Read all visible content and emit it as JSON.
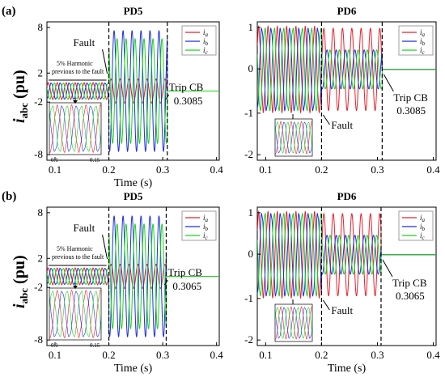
{
  "rows": [
    {
      "label": "(a)",
      "trip_time": "0.3085"
    },
    {
      "label": "(b)",
      "trip_time": "0.3065"
    }
  ],
  "ylabel": {
    "main": "i",
    "sub": "abc",
    "unit": "(pu)"
  },
  "annotations": {
    "fault": "Fault",
    "trip": "Trip CB",
    "harmonic_line1": "5% Harmonic",
    "harmonic_line2": "previous to the fault"
  },
  "inset_ticks": [
    "0.1",
    "0.15"
  ],
  "colors": {
    "ia": "#e8202a",
    "ib": "#1c2fe0",
    "ic": "#18d418"
  },
  "chart_data": [
    {
      "type": "line",
      "row": "(a)",
      "title": "PD5",
      "xlabel": "Time (s)",
      "xlim": [
        0.085,
        0.405
      ],
      "ylim": [
        -8.6,
        8.6
      ],
      "xticks": [
        "0.1",
        "0.2",
        "0.3",
        "0.4"
      ],
      "yticks": [
        "8",
        "2",
        "-2",
        "-8"
      ],
      "frequency_hz": 60,
      "fault_time": 0.2,
      "trip_time": 0.3085,
      "series": [
        {
          "name": "i_a",
          "color": "#e8202a",
          "phase_deg": 0,
          "pre_fault_amplitude": 1,
          "fault_amplitude": 1.5
        },
        {
          "name": "i_b",
          "color": "#1c2fe0",
          "phase_deg": -120,
          "pre_fault_amplitude": 1,
          "fault_amplitude": 7.5
        },
        {
          "name": "i_c",
          "color": "#18d418",
          "phase_deg": 120,
          "pre_fault_amplitude": 1,
          "fault_amplitude": 6.5
        }
      ],
      "post_trip_value": 0
    },
    {
      "type": "line",
      "row": "(a)",
      "title": "PD6",
      "xlabel": "",
      "xlim": [
        0.085,
        0.405
      ],
      "ylim": [
        -2.1,
        1.1
      ],
      "xticks": [
        "0.1",
        "0.2",
        "0.3",
        "0.4"
      ],
      "yticks": [
        "1",
        "0",
        "-1",
        "-2"
      ],
      "frequency_hz": 60,
      "fault_time": 0.2,
      "trip_time": 0.3085,
      "series": [
        {
          "name": "i_a",
          "color": "#e8202a",
          "phase_deg": 0,
          "pre_fault_amplitude": 0.95,
          "fault_amplitude": 0.95
        },
        {
          "name": "i_b",
          "color": "#1c2fe0",
          "phase_deg": -120,
          "pre_fault_amplitude": 0.95,
          "fault_amplitude": 0.45
        },
        {
          "name": "i_c",
          "color": "#18d418",
          "phase_deg": 120,
          "pre_fault_amplitude": 0.95,
          "fault_amplitude": 0.45
        }
      ],
      "post_trip_value": 0
    },
    {
      "type": "line",
      "row": "(b)",
      "title": "PD5",
      "xlabel": "Time (s)",
      "xlim": [
        0.085,
        0.405
      ],
      "ylim": [
        -8.6,
        8.6
      ],
      "xticks": [
        "0.1",
        "0.2",
        "0.3",
        "0.4"
      ],
      "yticks": [
        "8",
        "2",
        "-2",
        "-8"
      ],
      "frequency_hz": 60,
      "fault_time": 0.2,
      "trip_time": 0.3065,
      "series": [
        {
          "name": "i_a",
          "color": "#e8202a",
          "phase_deg": 0,
          "pre_fault_amplitude": 1,
          "fault_amplitude": 1.5
        },
        {
          "name": "i_b",
          "color": "#1c2fe0",
          "phase_deg": -120,
          "pre_fault_amplitude": 1,
          "fault_amplitude": 7.5
        },
        {
          "name": "i_c",
          "color": "#18d418",
          "phase_deg": 120,
          "pre_fault_amplitude": 1,
          "fault_amplitude": 6.5
        }
      ],
      "post_trip_value": 0
    },
    {
      "type": "line",
      "row": "(b)",
      "title": "PD6",
      "xlabel": "Time (s)",
      "xlim": [
        0.085,
        0.405
      ],
      "ylim": [
        -2.1,
        1.1
      ],
      "xticks": [
        "0.1",
        "0.2",
        "0.3",
        "0.4"
      ],
      "yticks": [
        "1",
        "0",
        "-1",
        "-2"
      ],
      "frequency_hz": 60,
      "fault_time": 0.2,
      "trip_time": 0.3065,
      "series": [
        {
          "name": "i_a",
          "color": "#e8202a",
          "phase_deg": 0,
          "pre_fault_amplitude": 0.95,
          "fault_amplitude": 0.95
        },
        {
          "name": "i_b",
          "color": "#1c2fe0",
          "phase_deg": -120,
          "pre_fault_amplitude": 0.95,
          "fault_amplitude": 0.45
        },
        {
          "name": "i_c",
          "color": "#18d418",
          "phase_deg": 120,
          "pre_fault_amplitude": 0.95,
          "fault_amplitude": 0.45
        }
      ],
      "post_trip_value": 0
    }
  ]
}
